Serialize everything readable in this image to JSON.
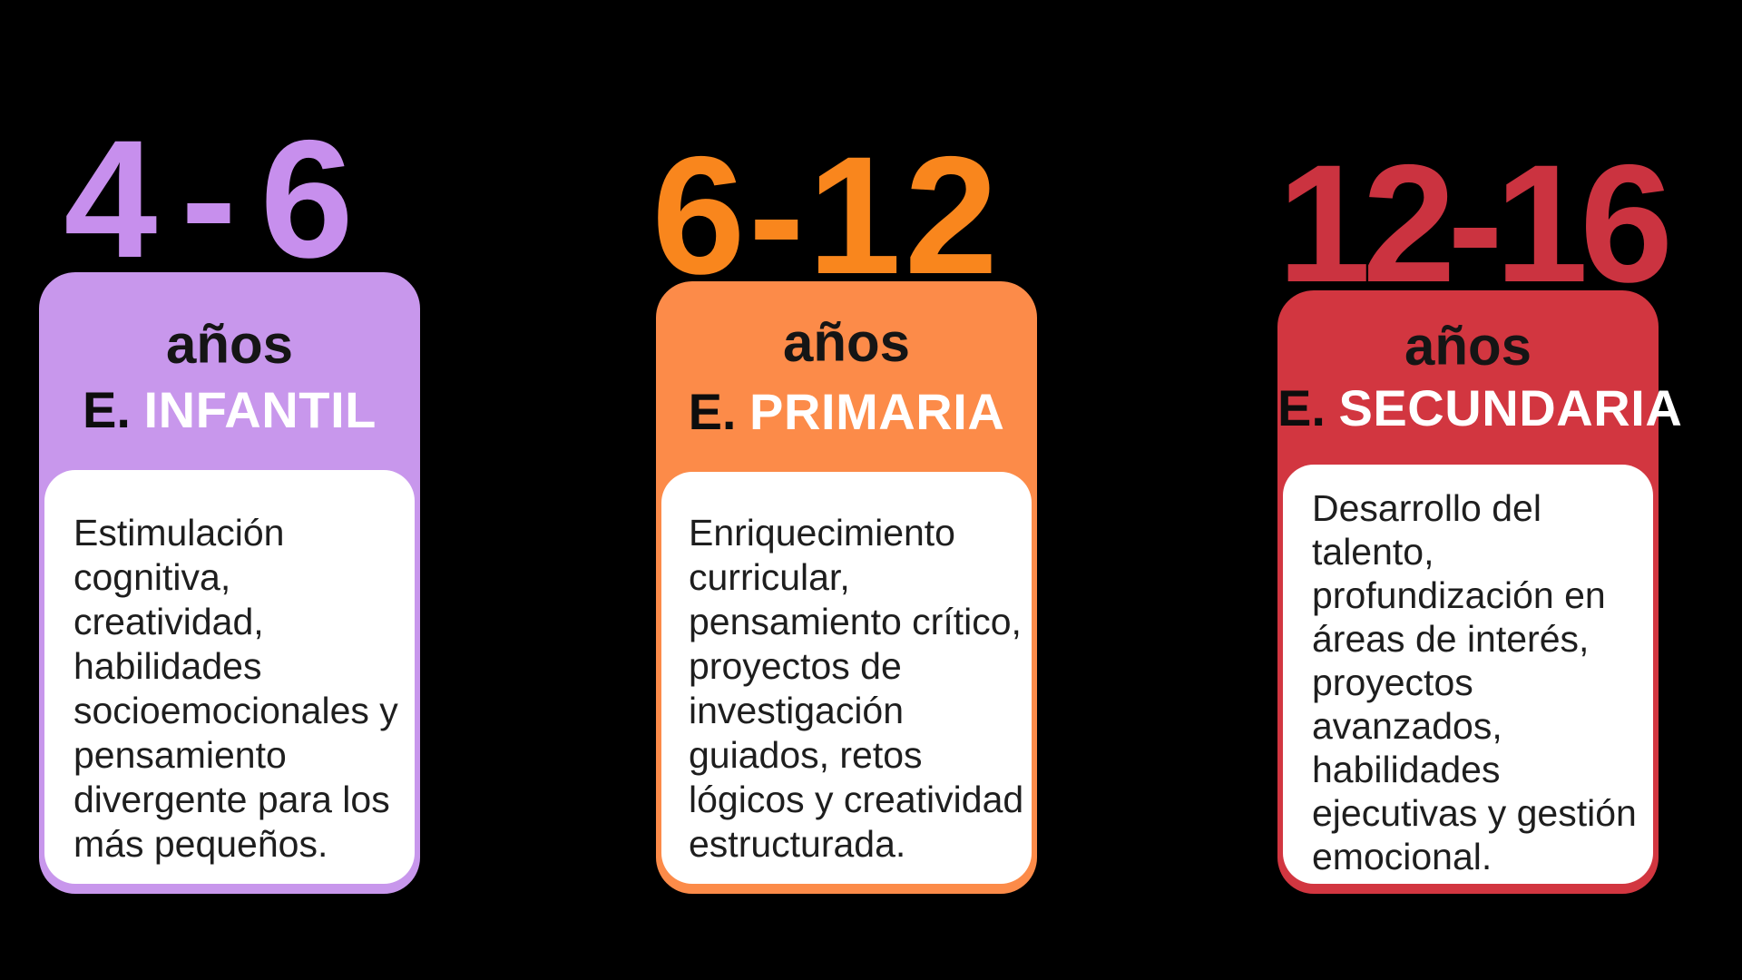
{
  "page": {
    "background_color": "#000000",
    "card_body_color": "#ffffff"
  },
  "cards": [
    {
      "age_range": "4-6",
      "age_unit": "años",
      "stage_prefix": "E.",
      "stage_name": "INFANTIL",
      "description": "Estimulación cognitiva, creatividad, habilidades socioemocionales y pensamiento divergente para los más pequeños.",
      "number_color": "#c78fed",
      "card_color": "#c897ec"
    },
    {
      "age_range": "6-12",
      "age_unit": "años",
      "stage_prefix": "E.",
      "stage_name": "PRIMARIA",
      "description": "Enriquecimiento curricular, pensamiento crítico, proyectos de investigación guiados, retos lógicos y creatividad estructurada.",
      "number_color": "#f9861d",
      "card_color": "#fc8b49"
    },
    {
      "age_range": "12-16",
      "age_unit": "años",
      "stage_prefix": "E.",
      "stage_name": "SECUNDARIA",
      "description": "Desarrollo del talento, profundización en áreas de interés, proyectos avanzados, habilidades ejecutivas y gestión emocional.",
      "number_color": "#cb3340",
      "card_color": "#d23640"
    }
  ]
}
